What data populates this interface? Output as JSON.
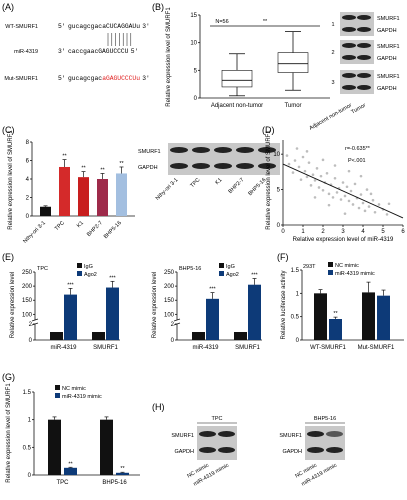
{
  "panels": {
    "A": {
      "label": "(A)",
      "rows": [
        {
          "name": "WT-SMURF1",
          "prime5": "5'",
          "seq_black": "gucagcgac",
          "seq_red": "",
          "seq_black2": "aCUCAGGAUu",
          "prime3": "3'"
        },
        {
          "name": "miR-4319",
          "prime5": "3'",
          "seq_black": "caccgaacGAGUCCCU",
          "seq_red": "",
          "seq_black2": "",
          "prime3": "5'"
        },
        {
          "name": "Mut-SMURF1",
          "prime5": "5'",
          "seq_black": "gucagcgac",
          "seq_red": "aGAGUCCCUu",
          "seq_black2": "",
          "prime3": "3'"
        }
      ]
    },
    "B": {
      "label": "(B)",
      "n_text": "N=56",
      "sig": "**",
      "blot_rows": [
        "1",
        "2",
        "3"
      ],
      "bands": [
        "SMURF1",
        "GAPDH"
      ],
      "blot_cols": [
        "Adjacent non-tumor",
        "Tumor"
      ]
    },
    "C": {
      "label": "(C)",
      "bands": [
        "SMURF1",
        "GAPDH"
      ],
      "blot_cols": [
        "Nthy-ori 3-1",
        "TPC",
        "K1",
        "BHP2-7",
        "BHP5-16"
      ]
    },
    "D": {
      "label": "(D)",
      "r_text": "r=-0.635**",
      "p_text": "P<.001"
    },
    "E": {
      "label": "(E)",
      "legend": [
        "IgG",
        "Ago2"
      ]
    },
    "F": {
      "label": "(F)",
      "cell": "293T",
      "legend": [
        "NC mimic",
        "miR-4319 mimic"
      ]
    },
    "G": {
      "label": "(G)",
      "legend": [
        "NC mimic",
        "miR-4319 mimic"
      ]
    },
    "H": {
      "label": "(H)",
      "blots": [
        {
          "title": "TPC",
          "bands": [
            "SMURF1",
            "GAPDH"
          ],
          "cols": [
            "NC mimic",
            "miR-4319 mimic"
          ]
        },
        {
          "title": "BHP5-16",
          "bands": [
            "SMURF1",
            "GAPDH"
          ],
          "cols": [
            "NC mimic",
            "miR-4319 mimic"
          ]
        }
      ]
    }
  },
  "colors": {
    "navy": "#0d3a78",
    "black": "#111111",
    "red": "#e02020",
    "lightblue": "#aac4e2",
    "gray": "#c8c8c8"
  },
  "chart_data": [
    {
      "id": "B",
      "type": "box",
      "categories": [
        "Adjacent non-tumor",
        "Tumor"
      ],
      "ylabel": "Relative expression level of SMURF1",
      "yticks": [
        0,
        5,
        10,
        15
      ],
      "ylim": [
        0,
        15
      ],
      "boxes": [
        {
          "min": 0.4,
          "q1": 2.0,
          "median": 3.2,
          "q3": 5.0,
          "max": 8.0
        },
        {
          "min": 1.4,
          "q1": 4.6,
          "median": 6.2,
          "q3": 8.2,
          "max": 12.0
        }
      ],
      "annotations": [
        "N=56",
        "**"
      ]
    },
    {
      "id": "C",
      "type": "bar",
      "categories": [
        "Nthy-ori 3-1",
        "TPC",
        "K1",
        "BHP2-7",
        "BHP5-16"
      ],
      "values": [
        1.0,
        5.3,
        4.2,
        4.0,
        4.6
      ],
      "errors": [
        0.1,
        0.8,
        0.6,
        0.6,
        0.7
      ],
      "sig": [
        "",
        "**",
        "**",
        "**",
        "**"
      ],
      "bar_colors": [
        "#111111",
        "#d42a2a",
        "#c81e1e",
        "#9e2a4a",
        "#a3bfe0"
      ],
      "ylabel": "Relative expression level of SMURF1",
      "yticks": [
        0,
        2,
        4,
        6,
        8
      ],
      "ylim": [
        0,
        8
      ]
    },
    {
      "id": "D",
      "type": "scatter",
      "xlabel": "Relative expression level of miR-4319",
      "ylabel": "Relative expression level of SMURF1",
      "xticks": [
        0,
        1,
        2,
        3,
        4,
        5,
        6
      ],
      "yticks": [
        0,
        5,
        10
      ],
      "xlim": [
        0,
        6
      ],
      "ylim": [
        0,
        12
      ],
      "points": [
        [
          0.2,
          9.8
        ],
        [
          0.3,
          8.6
        ],
        [
          0.5,
          7.4
        ],
        [
          0.6,
          9.1
        ],
        [
          0.8,
          8.2
        ],
        [
          0.9,
          6.4
        ],
        [
          1.0,
          9.6
        ],
        [
          1.1,
          7.6
        ],
        [
          1.2,
          6.8
        ],
        [
          1.3,
          8.8
        ],
        [
          1.4,
          5.6
        ],
        [
          1.5,
          7.1
        ],
        [
          1.6,
          6.3
        ],
        [
          1.7,
          8.0
        ],
        [
          1.8,
          5.3
        ],
        [
          1.9,
          6.9
        ],
        [
          2.0,
          4.9
        ],
        [
          2.1,
          6.0
        ],
        [
          2.2,
          7.3
        ],
        [
          2.3,
          4.4
        ],
        [
          2.4,
          5.7
        ],
        [
          2.5,
          3.9
        ],
        [
          2.6,
          6.6
        ],
        [
          2.7,
          4.6
        ],
        [
          2.8,
          5.2
        ],
        [
          2.9,
          3.6
        ],
        [
          3.0,
          6.0
        ],
        [
          3.1,
          4.1
        ],
        [
          3.2,
          5.4
        ],
        [
          3.3,
          3.4
        ],
        [
          3.4,
          4.8
        ],
        [
          3.5,
          2.9
        ],
        [
          3.6,
          5.8
        ],
        [
          3.7,
          3.8
        ],
        [
          3.8,
          2.4
        ],
        [
          3.9,
          4.3
        ],
        [
          4.0,
          3.1
        ],
        [
          4.1,
          2.0
        ],
        [
          4.2,
          5.0
        ],
        [
          4.3,
          2.6
        ],
        [
          4.5,
          3.5
        ],
        [
          4.6,
          1.8
        ],
        [
          4.8,
          2.9
        ],
        [
          5.0,
          2.2
        ],
        [
          5.2,
          1.5
        ],
        [
          0.7,
          10.8
        ],
        [
          1.2,
          10.4
        ],
        [
          2.0,
          9.2
        ],
        [
          2.6,
          8.4
        ],
        [
          3.3,
          7.6
        ],
        [
          3.9,
          6.9
        ],
        [
          1.6,
          3.9
        ],
        [
          2.3,
          2.8
        ],
        [
          3.1,
          1.6
        ],
        [
          4.4,
          4.4
        ],
        [
          5.3,
          3.0
        ]
      ],
      "fit": {
        "x": [
          0,
          6
        ],
        "y": [
          8.6,
          1.0
        ]
      },
      "annotations": [
        "r=-0.635**",
        "P<.001"
      ]
    },
    {
      "id": "E-TPC",
      "type": "bar",
      "title": "TPC",
      "categories": [
        "miR-4319",
        "SMURF1"
      ],
      "series": [
        {
          "name": "IgG",
          "values": [
            1,
            1
          ],
          "errors": [
            0.1,
            0.1
          ]
        },
        {
          "name": "Ago2",
          "values": [
            170,
            195
          ],
          "errors": [
            22,
            22
          ]
        }
      ],
      "sig": [
        "***",
        "***"
      ],
      "ylabel": "Relative expression level",
      "yticks": [
        0,
        2,
        100,
        150,
        200,
        250
      ],
      "axis_break": [
        2,
        80
      ]
    },
    {
      "id": "E-BHP5-16",
      "type": "bar",
      "title": "BHP5-16",
      "categories": [
        "miR-4319",
        "SMURF1"
      ],
      "series": [
        {
          "name": "IgG",
          "values": [
            1,
            1
          ],
          "errors": [
            0.1,
            0.1
          ]
        },
        {
          "name": "Ago2",
          "values": [
            155,
            205
          ],
          "errors": [
            22,
            22
          ]
        }
      ],
      "sig": [
        "***",
        "***"
      ],
      "ylabel": "Relative expression level",
      "yticks": [
        0,
        2,
        100,
        150,
        200,
        250
      ],
      "axis_break": [
        2,
        80
      ]
    },
    {
      "id": "F",
      "type": "bar",
      "title": "293T",
      "categories": [
        "WT-SMURF1",
        "Mut-SMURF1"
      ],
      "series": [
        {
          "name": "NC mimic",
          "values": [
            1.0,
            1.02
          ],
          "errors": [
            0.08,
            0.22
          ]
        },
        {
          "name": "miR-4319 mimic",
          "values": [
            0.45,
            0.95
          ],
          "errors": [
            0.04,
            0.12
          ]
        }
      ],
      "sig": [
        "**",
        ""
      ],
      "ylabel": "Relative luciferase activity",
      "yticks": [
        0.0,
        0.5,
        1.0,
        1.5
      ],
      "ylim": [
        0,
        1.5
      ]
    },
    {
      "id": "G",
      "type": "bar",
      "categories": [
        "TPC",
        "BHP5-16"
      ],
      "series": [
        {
          "name": "NC mimic",
          "values": [
            1.0,
            1.0
          ],
          "errors": [
            0.05,
            0.05
          ]
        },
        {
          "name": "miR-4319 mimic",
          "values": [
            0.13,
            0.04
          ],
          "errors": [
            0.01,
            0.01
          ]
        }
      ],
      "sig": [
        "**",
        "**"
      ],
      "ylabel": "Relative expression level of SMURF1",
      "yticks": [
        0.0,
        0.5,
        1.0,
        1.5
      ],
      "ylim": [
        0,
        1.5
      ]
    }
  ]
}
